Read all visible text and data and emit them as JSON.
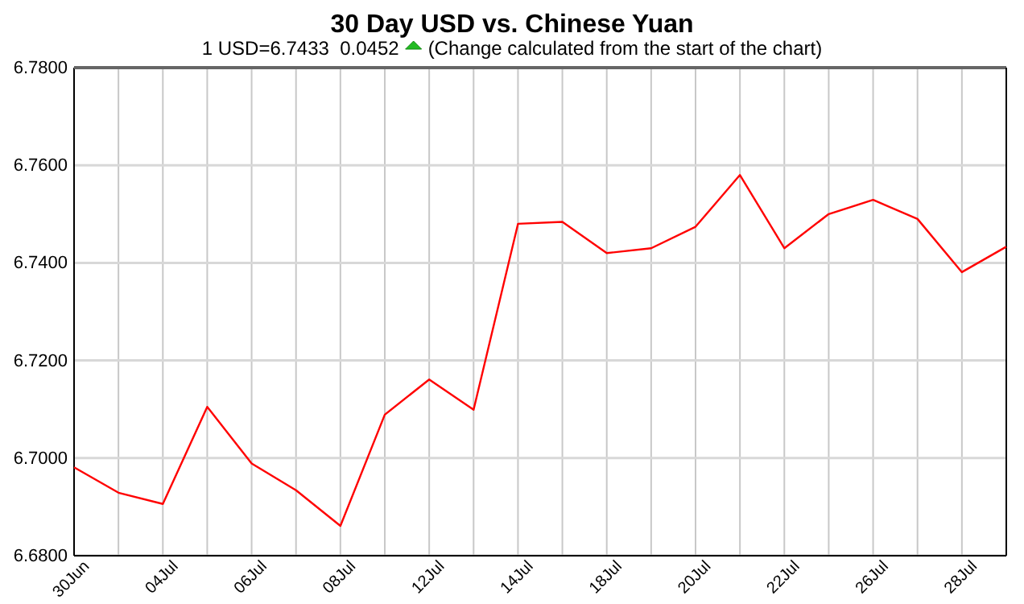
{
  "chart_data": {
    "type": "line",
    "title": "30 Day USD vs. Chinese Yuan",
    "subtitle": "1 USD=6.7433  0.0452",
    "annotations": [
      "(Change calculated from the start of the chart)"
    ],
    "categories": [
      "30Jun",
      null,
      "04Jul",
      null,
      "06Jul",
      null,
      "08Jul",
      null,
      "12Jul",
      null,
      "14Jul",
      null,
      "18Jul",
      null,
      "20Jul",
      null,
      "22Jul",
      null,
      "26Jul",
      null,
      "28Jul",
      null
    ],
    "series": [
      {
        "color": "#ff0000",
        "values": [
          6.6981,
          6.6929,
          6.6906,
          6.7105,
          6.6989,
          6.6934,
          6.6861,
          6.7089,
          6.7161,
          6.7099,
          6.748,
          6.7484,
          6.742,
          6.743,
          6.7474,
          6.758,
          6.743,
          6.75,
          6.7529,
          6.749,
          6.7381,
          6.7433
        ]
      }
    ],
    "ylim": [
      6.68,
      6.78
    ],
    "yticks": [
      {
        "value": 6.68,
        "label": "6.6800"
      },
      {
        "value": 6.7,
        "label": "6.7000"
      },
      {
        "value": 6.72,
        "label": "6.7200"
      },
      {
        "value": 6.74,
        "label": "6.7400"
      },
      {
        "value": 6.76,
        "label": "6.7600"
      },
      {
        "value": 6.78,
        "label": "6.7800"
      }
    ],
    "grid": true,
    "marker": "none",
    "line_style": "solid"
  }
}
